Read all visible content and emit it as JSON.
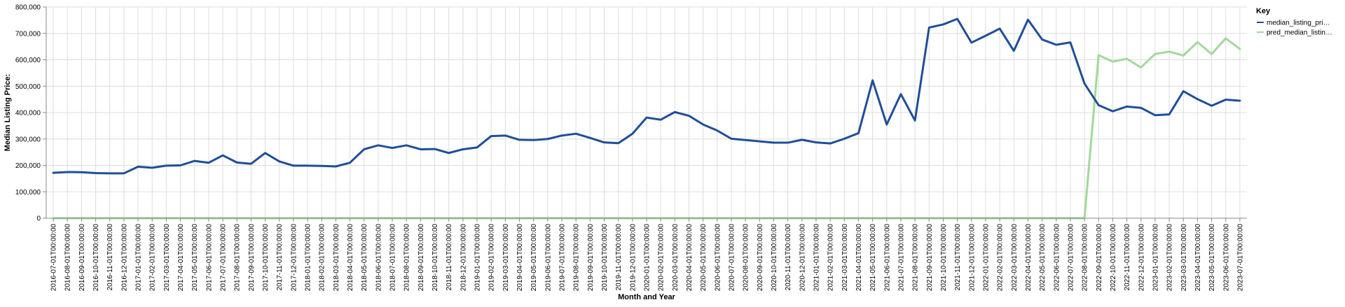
{
  "chart_data": {
    "type": "line",
    "xlabel": "Month and Year",
    "ylabel": "Median Listing Price:",
    "ylim": [
      0,
      800000
    ],
    "y_ticks": [
      "0",
      "100,000",
      "200,000",
      "300,000",
      "400,000",
      "500,000",
      "600,000",
      "700,000",
      "800,000"
    ],
    "grid": true,
    "legend": {
      "title": "Key",
      "placement": "top-right",
      "entries": [
        "median_listing_pri…",
        "pred_median_listin…"
      ]
    },
    "colors": {
      "median_listing_price": "#1f4e99",
      "pred_median_listing_price": "#a1d99b"
    },
    "x": [
      "2016-07-01T00:00:00",
      "2016-08-01T00:00:00",
      "2016-09-01T00:00:00",
      "2016-10-01T00:00:00",
      "2016-11-01T00:00:00",
      "2016-12-01T00:00:00",
      "2017-01-01T00:00:00",
      "2017-02-01T00:00:00",
      "2017-03-01T00:00:00",
      "2017-04-01T00:00:00",
      "2017-05-01T00:00:00",
      "2017-06-01T00:00:00",
      "2017-07-01T00:00:00",
      "2017-08-01T00:00:00",
      "2017-09-01T00:00:00",
      "2017-10-01T00:00:00",
      "2017-11-01T00:00:00",
      "2017-12-01T00:00:00",
      "2018-01-01T00:00:00",
      "2018-02-01T00:00:00",
      "2018-03-01T00:00:00",
      "2018-04-01T00:00:00",
      "2018-05-01T00:00:00",
      "2018-06-01T00:00:00",
      "2018-07-01T00:00:00",
      "2018-08-01T00:00:00",
      "2018-09-01T00:00:00",
      "2018-10-01T00:00:00",
      "2018-11-01T00:00:00",
      "2018-12-01T00:00:00",
      "2019-01-01T00:00:00",
      "2019-02-01T00:00:00",
      "2019-03-01T00:00:00",
      "2019-04-01T00:00:00",
      "2019-05-01T00:00:00",
      "2019-06-01T00:00:00",
      "2019-07-01T00:00:00",
      "2019-08-01T00:00:00",
      "2019-09-01T00:00:00",
      "2019-10-01T00:00:00",
      "2019-11-01T00:00:00",
      "2019-12-01T00:00:00",
      "2020-01-01T00:00:00",
      "2020-02-01T00:00:00",
      "2020-03-01T00:00:00",
      "2020-04-01T00:00:00",
      "2020-05-01T00:00:00",
      "2020-06-01T00:00:00",
      "2020-07-01T00:00:00",
      "2020-08-01T00:00:00",
      "2020-09-01T00:00:00",
      "2020-10-01T00:00:00",
      "2020-11-01T00:00:00",
      "2020-12-01T00:00:00",
      "2021-01-01T00:00:00",
      "2021-02-01T00:00:00",
      "2021-03-01T00:00:00",
      "2021-04-01T00:00:00",
      "2021-05-01T00:00:00",
      "2021-06-01T00:00:00",
      "2021-07-01T00:00:00",
      "2021-08-01T00:00:00",
      "2021-09-01T00:00:00",
      "2021-10-01T00:00:00",
      "2021-11-01T00:00:00",
      "2021-12-01T00:00:00",
      "2022-01-01T00:00:00",
      "2022-02-01T00:00:00",
      "2022-03-01T00:00:00",
      "2022-04-01T00:00:00",
      "2022-05-01T00:00:00",
      "2022-06-01T00:00:00",
      "2022-07-01T00:00:00",
      "2022-08-01T00:00:00",
      "2022-09-01T00:00:00",
      "2022-10-01T00:00:00",
      "2022-11-01T00:00:00",
      "2022-12-01T00:00:00",
      "2023-01-01T00:00:00",
      "2023-02-01T00:00:00",
      "2023-03-01T00:00:00",
      "2023-04-01T00:00:00",
      "2023-05-01T00:00:00",
      "2023-06-01T00:00:00",
      "2023-07-01T00:00:00"
    ],
    "series": [
      {
        "name": "median_listing_pri…",
        "values": [
          172000,
          175000,
          174000,
          171000,
          170000,
          170000,
          195000,
          191000,
          199000,
          200000,
          217000,
          210000,
          238000,
          211000,
          206000,
          247000,
          215000,
          199000,
          199000,
          198000,
          196000,
          210000,
          261000,
          276000,
          266000,
          276000,
          261000,
          262000,
          247000,
          261000,
          268000,
          311000,
          313000,
          297000,
          296000,
          300000,
          313000,
          320000,
          304000,
          287000,
          284000,
          320000,
          381000,
          373000,
          402000,
          388000,
          355000,
          332000,
          301000,
          296000,
          291000,
          286000,
          286000,
          297000,
          287000,
          283000,
          301000,
          322000,
          522000,
          355000,
          470000,
          370000,
          722000,
          734000,
          755000,
          665000,
          691000,
          718000,
          634000,
          752000,
          677000,
          657000,
          666000,
          510000,
          428000,
          405000,
          423000,
          418000,
          390000,
          393000,
          481000,
          451000,
          426000,
          449000,
          445000
        ]
      },
      {
        "name": "pred_median_listin…",
        "values": [
          0,
          0,
          0,
          0,
          0,
          0,
          0,
          0,
          0,
          0,
          0,
          0,
          0,
          0,
          0,
          0,
          0,
          0,
          0,
          0,
          0,
          0,
          0,
          0,
          0,
          0,
          0,
          0,
          0,
          0,
          0,
          0,
          0,
          0,
          0,
          0,
          0,
          0,
          0,
          0,
          0,
          0,
          0,
          0,
          0,
          0,
          0,
          0,
          0,
          0,
          0,
          0,
          0,
          0,
          0,
          0,
          0,
          0,
          0,
          0,
          0,
          0,
          0,
          0,
          0,
          0,
          0,
          0,
          0,
          0,
          0,
          0,
          0,
          0,
          618000,
          593000,
          604000,
          571000,
          622000,
          631000,
          616000,
          667000,
          622000,
          681000,
          641000
        ]
      }
    ]
  }
}
